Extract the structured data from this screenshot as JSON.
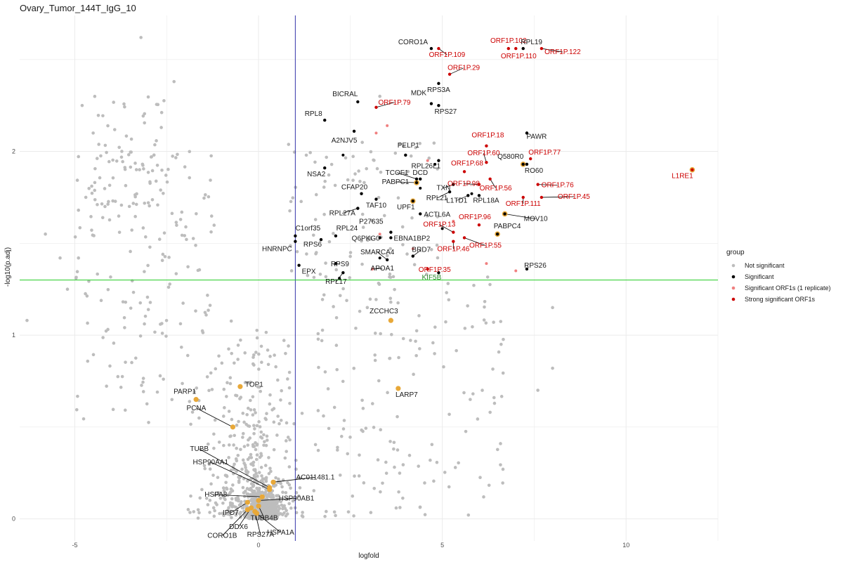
{
  "chart_data": {
    "type": "scatter",
    "title": "Ovary_Tumor_144T_IgG_10",
    "xlabel": "logfold",
    "ylabel": "-log10(p.adj)",
    "xlim": [
      -6.5,
      12.5
    ],
    "ylim": [
      -0.12,
      2.74
    ],
    "x_ticks": [
      -5,
      0,
      5,
      10
    ],
    "y_ticks": [
      0,
      1,
      2
    ],
    "grid": true,
    "reference_lines": {
      "vertical_x": 1,
      "horizontal_y": 1.3
    },
    "colors": {
      "not_significant": "#bdbdbd",
      "significant": "#000000",
      "orf1_one_replicate": "#f08080",
      "strong_orf1": "#cc0000",
      "highlight": "#e8a838",
      "vline": "#3333aa",
      "hline": "#22cc22",
      "red_label": "#cc0000",
      "green_label": "#2e8b2e"
    },
    "legend": {
      "title": "group",
      "placement": "right",
      "entries": [
        {
          "label": "Not significant",
          "color": "#bdbdbd"
        },
        {
          "label": "Significant",
          "color": "#000000"
        },
        {
          "label": "Significant ORF1s (1 replicate)",
          "color": "#f08080"
        },
        {
          "label": "Strong significant ORF1s",
          "color": "#cc0000"
        }
      ]
    },
    "labeled_points": [
      {
        "label": "CORO1A",
        "x": 4.7,
        "y": 2.56,
        "group": "significant"
      },
      {
        "label": "ORF1P.102",
        "x": 6.8,
        "y": 2.56,
        "group": "strong"
      },
      {
        "label": "RPL19",
        "x": 7.2,
        "y": 2.56,
        "group": "significant"
      },
      {
        "label": "ORF1P.122",
        "x": 7.7,
        "y": 2.56,
        "group": "strong"
      },
      {
        "label": "ORF1P.109",
        "x": 4.9,
        "y": 2.56,
        "group": "strong"
      },
      {
        "label": "ORF1P.110",
        "x": 7.0,
        "y": 2.56,
        "group": "strong"
      },
      {
        "label": "ORF1P.29",
        "x": 5.2,
        "y": 2.42,
        "group": "strong"
      },
      {
        "label": "RPS3A",
        "x": 4.9,
        "y": 2.37,
        "group": "significant"
      },
      {
        "label": "MDK",
        "x": 4.7,
        "y": 2.26,
        "group": "significant"
      },
      {
        "label": "BICRAL",
        "x": 2.7,
        "y": 2.27,
        "group": "significant"
      },
      {
        "label": "ORF1P.79",
        "x": 3.2,
        "y": 2.24,
        "group": "strong"
      },
      {
        "label": "RPS27",
        "x": 4.9,
        "y": 2.25,
        "group": "significant"
      },
      {
        "label": "RPL8",
        "x": 1.8,
        "y": 2.17,
        "group": "significant"
      },
      {
        "label": "A2NJV5",
        "x": 2.6,
        "y": 2.11,
        "group": "significant"
      },
      {
        "label": "ORF1P.18",
        "x": 6.2,
        "y": 2.03,
        "group": "strong"
      },
      {
        "label": "PAWR",
        "x": 7.3,
        "y": 2.1,
        "group": "significant"
      },
      {
        "label": "PELP1",
        "x": 4.0,
        "y": 1.98,
        "group": "significant"
      },
      {
        "label": "ORF1P.60",
        "x": 6.2,
        "y": 1.94,
        "group": "strong"
      },
      {
        "label": "ORF1P.77",
        "x": 7.4,
        "y": 1.96,
        "group": "strong"
      },
      {
        "label": "Q580R0",
        "x": 7.2,
        "y": 1.93,
        "group": "significant"
      },
      {
        "label": "RPL26L1",
        "x": 4.9,
        "y": 1.95,
        "group": "significant"
      },
      {
        "label": "ORF1P.68",
        "x": 5.6,
        "y": 1.89,
        "group": "strong"
      },
      {
        "label": "RO60",
        "x": 7.3,
        "y": 1.93,
        "group": "significant"
      },
      {
        "label": "L1RE1",
        "x": 11.8,
        "y": 1.9,
        "group": "strong"
      },
      {
        "label": "NSA2",
        "x": 1.8,
        "y": 1.91,
        "group": "significant"
      },
      {
        "label": "TCOF1",
        "x": 4.3,
        "y": 1.85,
        "group": "significant"
      },
      {
        "label": "DCD",
        "x": 4.4,
        "y": 1.85,
        "group": "significant"
      },
      {
        "label": "ORF1P.98",
        "x": 6.0,
        "y": 1.82,
        "group": "strong"
      },
      {
        "label": "PABPC1",
        "x": 4.3,
        "y": 1.83,
        "group": "significant"
      },
      {
        "label": "TXN",
        "x": 5.3,
        "y": 1.82,
        "group": "significant"
      },
      {
        "label": "ORF1P.56",
        "x": 6.3,
        "y": 1.85,
        "group": "strong"
      },
      {
        "label": "ORF1P.76",
        "x": 7.6,
        "y": 1.82,
        "group": "strong"
      },
      {
        "label": "CFAP20",
        "x": 2.8,
        "y": 1.77,
        "group": "significant"
      },
      {
        "label": "RPL21",
        "x": 5.2,
        "y": 1.78,
        "group": "significant"
      },
      {
        "label": "L1TD1",
        "x": 5.7,
        "y": 1.76,
        "group": "significant"
      },
      {
        "label": "RPL18A",
        "x": 6.0,
        "y": 1.76,
        "group": "significant"
      },
      {
        "label": "ORF1P.45",
        "x": 7.7,
        "y": 1.75,
        "group": "strong"
      },
      {
        "label": "TAF10",
        "x": 3.2,
        "y": 1.74,
        "group": "significant"
      },
      {
        "label": "UPF1",
        "x": 4.2,
        "y": 1.73,
        "group": "significant"
      },
      {
        "label": "ORF1P.111",
        "x": 7.2,
        "y": 1.75,
        "group": "strong"
      },
      {
        "label": "RPL27A",
        "x": 2.7,
        "y": 1.69,
        "group": "significant"
      },
      {
        "label": "ACTL6A",
        "x": 4.4,
        "y": 1.66,
        "group": "significant"
      },
      {
        "label": "MOV10",
        "x": 6.7,
        "y": 1.66,
        "group": "significant"
      },
      {
        "label": "ORF1P.96",
        "x": 6.0,
        "y": 1.6,
        "group": "strong"
      },
      {
        "label": "C1orf35",
        "x": 1.0,
        "y": 1.54,
        "group": "significant"
      },
      {
        "label": "RPL24",
        "x": 2.1,
        "y": 1.54,
        "group": "significant"
      },
      {
        "label": "P27635",
        "x": 3.6,
        "y": 1.56,
        "group": "significant"
      },
      {
        "label": "ORF1P.13",
        "x": 5.3,
        "y": 1.56,
        "group": "strong"
      },
      {
        "label": "PABPC4",
        "x": 6.5,
        "y": 1.55,
        "group": "significant"
      },
      {
        "label": "Q6PKG0",
        "x": 3.3,
        "y": 1.53,
        "group": "significant"
      },
      {
        "label": "EBNA1BP2",
        "x": 3.6,
        "y": 1.53,
        "group": "significant"
      },
      {
        "label": "ORF1P.55",
        "x": 5.6,
        "y": 1.53,
        "group": "strong"
      },
      {
        "label": "RPS6",
        "x": 1.7,
        "y": 1.52,
        "group": "significant"
      },
      {
        "label": "HNRNPC",
        "x": 1.0,
        "y": 1.51,
        "group": "significant"
      },
      {
        "label": "SMARCA4",
        "x": 3.5,
        "y": 1.41,
        "group": "significant"
      },
      {
        "label": "BRD7",
        "x": 4.2,
        "y": 1.43,
        "group": "significant"
      },
      {
        "label": "ORF1P.46",
        "x": 5.3,
        "y": 1.51,
        "group": "strong"
      },
      {
        "label": "APOA1",
        "x": 3.1,
        "y": 1.36,
        "group": "orf1_one"
      },
      {
        "label": "RPS26",
        "x": 7.3,
        "y": 1.36,
        "group": "significant"
      },
      {
        "label": "EPX",
        "x": 1.1,
        "y": 1.38,
        "group": "significant"
      },
      {
        "label": "RPS9",
        "x": 2.1,
        "y": 1.39,
        "group": "significant"
      },
      {
        "label": "ORF1P.35",
        "x": 4.6,
        "y": 1.36,
        "group": "strong"
      },
      {
        "label": "RPL17",
        "x": 2.3,
        "y": 1.34,
        "group": "significant"
      },
      {
        "label": "KIF5B",
        "x": 4.9,
        "y": 1.34,
        "group": "significant",
        "label_color": "green"
      },
      {
        "label": "ZCCHC3",
        "x": 3.6,
        "y": 1.08,
        "group": "highlight"
      },
      {
        "label": "TOP1",
        "x": -0.5,
        "y": 0.72,
        "group": "highlight"
      },
      {
        "label": "LARP7",
        "x": 3.8,
        "y": 0.71,
        "group": "highlight"
      },
      {
        "label": "PARP1",
        "x": -1.7,
        "y": 0.65,
        "group": "highlight"
      },
      {
        "label": "PCNA",
        "x": -0.7,
        "y": 0.5,
        "group": "highlight"
      },
      {
        "label": "TUBB",
        "x": 0.3,
        "y": 0.17,
        "group": "highlight"
      },
      {
        "label": "HSP90AA1",
        "x": 0.3,
        "y": 0.16,
        "group": "highlight"
      },
      {
        "label": "AC011481.1",
        "x": 0.4,
        "y": 0.2,
        "group": "highlight"
      },
      {
        "label": "HSPA8",
        "x": 0.1,
        "y": 0.12,
        "group": "highlight"
      },
      {
        "label": "HSP90AB1",
        "x": 0.0,
        "y": 0.1,
        "group": "highlight"
      },
      {
        "label": "IPO7",
        "x": -0.3,
        "y": 0.09,
        "group": "highlight"
      },
      {
        "label": "TUBB4B",
        "x": 0.0,
        "y": 0.07,
        "group": "highlight"
      },
      {
        "label": "DDX6",
        "x": -0.2,
        "y": 0.06,
        "group": "highlight"
      },
      {
        "label": "CORO1B",
        "x": -0.3,
        "y": 0.05,
        "group": "highlight"
      },
      {
        "label": "RPS27A",
        "x": -0.1,
        "y": 0.04,
        "group": "highlight"
      },
      {
        "label": "HSPA1A",
        "x": -0.05,
        "y": 0.03,
        "group": "highlight"
      }
    ],
    "extra_highlight_points": [
      {
        "x": 4.2,
        "y": 1.73
      },
      {
        "x": 4.3,
        "y": 1.83
      },
      {
        "x": 6.7,
        "y": 1.66
      },
      {
        "x": 6.5,
        "y": 1.55
      },
      {
        "x": 7.2,
        "y": 1.93
      },
      {
        "x": 11.8,
        "y": 1.9
      }
    ],
    "unlabeled_significant": [
      {
        "x": 2.3,
        "y": 1.98
      },
      {
        "x": 4.8,
        "y": 1.93
      },
      {
        "x": 4.4,
        "y": 1.8
      },
      {
        "x": 5.8,
        "y": 1.77
      },
      {
        "x": 3.3,
        "y": 1.42
      },
      {
        "x": 5.0,
        "y": 1.58
      },
      {
        "x": 2.2,
        "y": 1.31
      }
    ],
    "unlabeled_orf1_one_replicate": [
      {
        "x": 3.2,
        "y": 2.1
      },
      {
        "x": 3.5,
        "y": 2.14
      },
      {
        "x": 4.6,
        "y": 1.95
      },
      {
        "x": 4.2,
        "y": 1.47
      },
      {
        "x": 6.2,
        "y": 1.39
      },
      {
        "x": 7.0,
        "y": 1.35
      },
      {
        "x": 5.3,
        "y": 1.62
      },
      {
        "x": 3.3,
        "y": 1.55
      }
    ]
  }
}
